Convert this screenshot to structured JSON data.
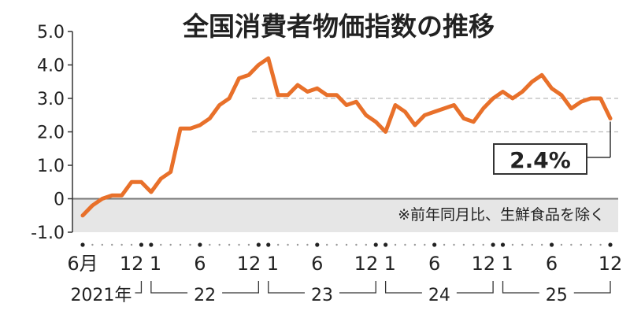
{
  "chart_data": {
    "type": "line",
    "title": "全国消費者物価指数の推移",
    "note": "※前年同月比、生鮮食品を除く",
    "callout": "2.4%",
    "ylim": [
      -1.0,
      5.0
    ],
    "y_ticks": [
      "5.0",
      "4.0",
      "3.0",
      "2.0",
      "1.0",
      "0",
      "-1.0"
    ],
    "y_tick_values": [
      5,
      4,
      3,
      2,
      1,
      0,
      -1
    ],
    "x_start": "2021-06",
    "x_end": "2025-12",
    "x_month_labels": [
      "6月",
      "12",
      "1",
      "6",
      "12",
      "1",
      "6",
      "12",
      "1",
      "6",
      "12",
      "1",
      "6",
      "12"
    ],
    "x_year_labels": [
      "2021年",
      "22",
      "23",
      "24",
      "25"
    ],
    "grid": "dashed at 2.0 and 3.0",
    "colors": {
      "line": "#e8702a",
      "negative_band": "#e6e6e6",
      "axis": "#333333",
      "grid": "#bbbbbb"
    },
    "series": [
      {
        "x": [
          "2021-06",
          "2021-07",
          "2021-08",
          "2021-09",
          "2021-10",
          "2021-11",
          "2021-12",
          "2022-01",
          "2022-02",
          "2022-03",
          "2022-04",
          "2022-05",
          "2022-06",
          "2022-07",
          "2022-08",
          "2022-09",
          "2022-10",
          "2022-11",
          "2022-12",
          "2023-01",
          "2023-02",
          "2023-03",
          "2023-04",
          "2023-05",
          "2023-06",
          "2023-07",
          "2023-08",
          "2023-09",
          "2023-10",
          "2023-11",
          "2023-12",
          "2024-01",
          "2024-02",
          "2024-03",
          "2024-04",
          "2024-05",
          "2024-06",
          "2024-07",
          "2024-08",
          "2024-09",
          "2024-10",
          "2024-11",
          "2024-12",
          "2025-01",
          "2025-02",
          "2025-03",
          "2025-04",
          "2025-05",
          "2025-06",
          "2025-07",
          "2025-08",
          "2025-09",
          "2025-10",
          "2025-11",
          "2025-12"
        ],
        "values": [
          -0.5,
          -0.2,
          0.0,
          0.1,
          0.1,
          0.5,
          0.5,
          0.2,
          0.6,
          0.8,
          2.1,
          2.1,
          2.2,
          2.4,
          2.8,
          3.0,
          3.6,
          3.7,
          4.0,
          4.2,
          3.1,
          3.1,
          3.4,
          3.2,
          3.3,
          3.1,
          3.1,
          2.8,
          2.9,
          2.5,
          2.3,
          2.0,
          2.8,
          2.6,
          2.2,
          2.5,
          2.6,
          2.7,
          2.8,
          2.4,
          2.3,
          2.7,
          3.0,
          3.2,
          3.0,
          3.2,
          3.5,
          3.7,
          3.3,
          3.1,
          2.7,
          2.9,
          3.0,
          3.0,
          2.4
        ]
      }
    ]
  }
}
